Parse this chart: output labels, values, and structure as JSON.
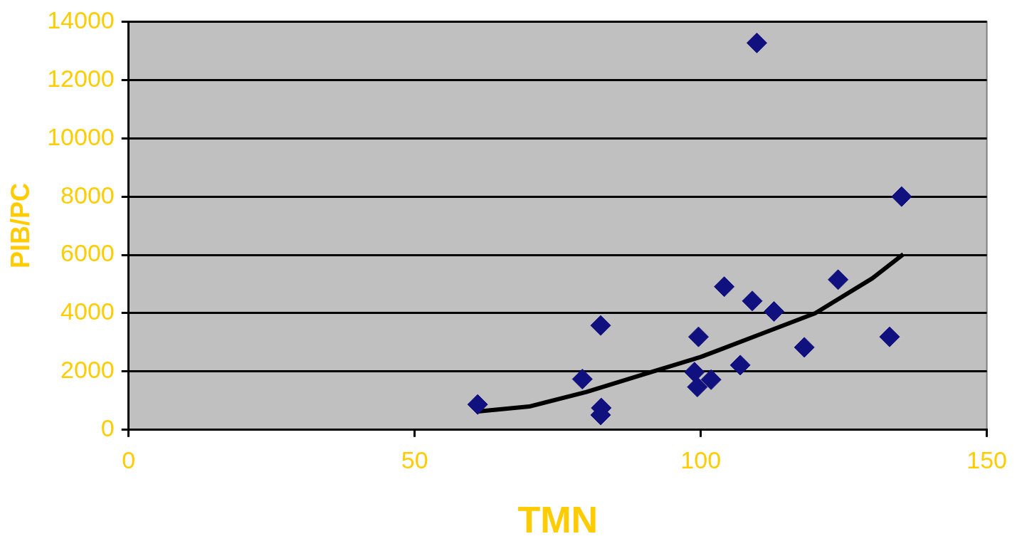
{
  "chart_data": {
    "type": "scatter",
    "xlabel": "TMN",
    "ylabel": "PIB/PC",
    "xlim": [
      0,
      150
    ],
    "xticks": [
      0,
      50,
      100,
      150
    ],
    "ylim": [
      0,
      14000
    ],
    "yticks": [
      0,
      2000,
      4000,
      6000,
      8000,
      10000,
      12000,
      14000
    ],
    "grid": "y",
    "legend": false,
    "marker": "diamond",
    "series": [
      {
        "color": "#10107f",
        "x": [
          61,
          79.3,
          82.5,
          82.6,
          82.5,
          99.6,
          98.9,
          99.4,
          101.8,
          104.1,
          106.9,
          109,
          109.8,
          112.8,
          118.1,
          124,
          133,
          135.1
        ],
        "values": [
          870,
          1740,
          3580,
          750,
          510,
          3190,
          1980,
          1470,
          1720,
          4910,
          2220,
          4420,
          13270,
          4060,
          2830,
          5150,
          3190,
          8000
        ]
      },
      {
        "type": "line",
        "color": "#000000",
        "marker": "none",
        "x": [
          61,
          70,
          80,
          90,
          100,
          110,
          120,
          130,
          135.4
        ],
        "values": [
          630,
          800,
          1300,
          1900,
          2500,
          3250,
          4000,
          5200,
          6020
        ]
      }
    ]
  }
}
